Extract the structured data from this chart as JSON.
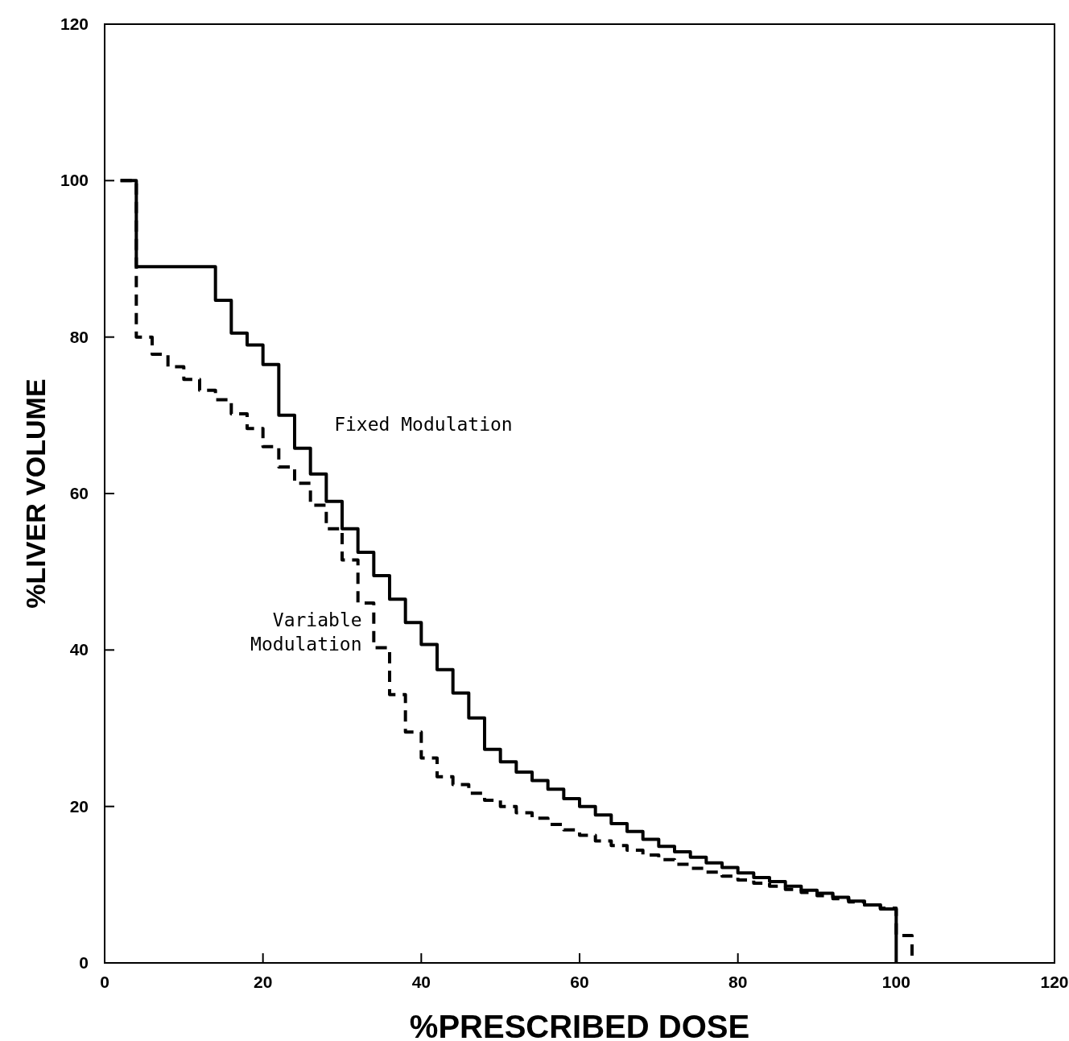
{
  "chart_data": {
    "type": "step",
    "xlabel": "%PRESCRIBED DOSE",
    "ylabel": "%LIVER VOLUME",
    "xlim": [
      0,
      120
    ],
    "ylim": [
      0,
      120
    ],
    "xticks": [
      0,
      20,
      40,
      60,
      80,
      100,
      120
    ],
    "yticks": [
      0,
      20,
      40,
      60,
      80,
      100,
      120
    ],
    "grid": false,
    "legend": false,
    "series": [
      {
        "name": "Fixed Modulation",
        "color": "#000000",
        "line_style": "solid",
        "x": [
          2,
          4,
          14,
          16,
          18,
          20,
          22,
          24,
          26,
          28,
          30,
          32,
          34,
          36,
          38,
          40,
          42,
          44,
          46,
          48,
          50,
          52,
          54,
          56,
          58,
          60,
          62,
          64,
          66,
          68,
          70,
          72,
          74,
          76,
          78,
          80,
          82,
          84,
          86,
          88,
          90,
          92,
          94,
          96,
          98,
          100
        ],
        "values": [
          100,
          89,
          84.7,
          80.5,
          79,
          76.5,
          70,
          65.8,
          62.5,
          59,
          55.5,
          52.5,
          49.5,
          46.5,
          43.5,
          40.7,
          37.5,
          34.5,
          31.3,
          27.3,
          25.7,
          24.4,
          23.3,
          22.2,
          21,
          20,
          18.9,
          17.8,
          16.8,
          15.8,
          14.9,
          14.2,
          13.5,
          12.8,
          12.2,
          11.5,
          10.9,
          10.4,
          9.8,
          9.3,
          8.9,
          8.4,
          7.9,
          7.4,
          6.9,
          0
        ]
      },
      {
        "name": "Variable Modulation",
        "color": "#000000",
        "line_style": "dashed",
        "x": [
          2,
          4,
          6,
          8,
          10,
          12,
          14,
          16,
          18,
          20,
          22,
          24,
          26,
          28,
          30,
          32,
          34,
          36,
          38,
          40,
          42,
          44,
          46,
          48,
          50,
          52,
          54,
          56,
          58,
          60,
          62,
          64,
          66,
          68,
          70,
          72,
          74,
          76,
          78,
          80,
          82,
          84,
          86,
          88,
          90,
          92,
          94,
          96,
          98,
          100,
          102
        ],
        "values": [
          100,
          80,
          77.8,
          76.2,
          74.6,
          73.2,
          72,
          70.2,
          68.3,
          66,
          63.4,
          61.3,
          58.5,
          55.5,
          51.5,
          46,
          40.3,
          34.3,
          29.5,
          26.2,
          23.8,
          22.8,
          21.7,
          20.8,
          20,
          19.2,
          18.5,
          17.7,
          17,
          16.3,
          15.6,
          15,
          14.4,
          13.8,
          13.2,
          12.6,
          12.1,
          11.6,
          11.1,
          10.6,
          10.2,
          9.8,
          9.4,
          9,
          8.6,
          8.2,
          7.8,
          7.4,
          7,
          3.5,
          0
        ]
      }
    ]
  }
}
